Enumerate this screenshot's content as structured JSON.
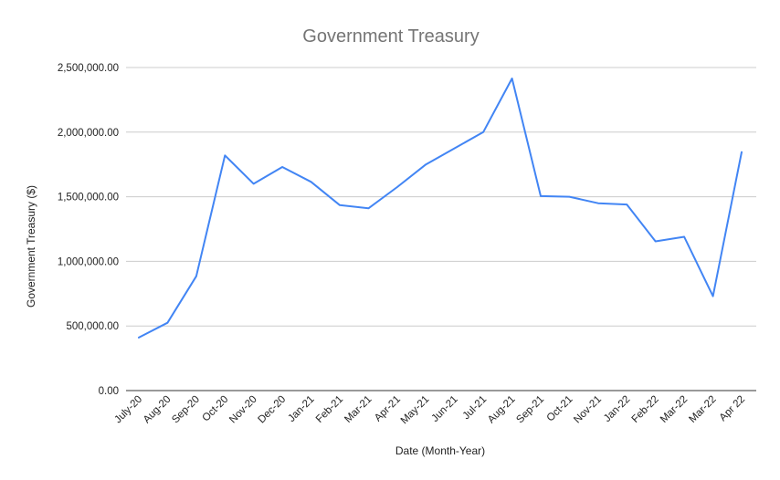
{
  "chart_data": {
    "type": "line",
    "title": "Government Treasury",
    "xlabel": "Date (Month-Year)",
    "ylabel": "Government Treasury ($)",
    "ylim": [
      0,
      2500000
    ],
    "yticks": [
      "0.00",
      "500,000.00",
      "1,000,000.00",
      "1,500,000.00",
      "2,000,000.00",
      "2,500,000.00"
    ],
    "ytick_values": [
      0,
      500000,
      1000000,
      1500000,
      2000000,
      2500000
    ],
    "grid": true,
    "legend": "none",
    "categories": [
      "July-20",
      "Aug-20",
      "Sep-20",
      "Oct-20",
      "Nov-20",
      "Dec-20",
      "Jan-21",
      "Feb-21",
      "Mar-21",
      "Apr-21",
      "May-21",
      "Jun-21",
      "Jul-21",
      "Aug-21",
      "Sep-21",
      "Oct-21",
      "Nov-21",
      "Jan-22",
      "Feb-22",
      "Mar-22",
      "Mar-22",
      "Apr 22"
    ],
    "series": [
      {
        "color": "#4285f4",
        "values": [
          410000,
          525000,
          885000,
          1820000,
          1600000,
          1730000,
          1615000,
          1435000,
          1410000,
          1575000,
          1750000,
          1875000,
          2000000,
          2415000,
          1505000,
          1500000,
          1450000,
          1440000,
          1155000,
          1190000,
          730000,
          1845000
        ]
      }
    ]
  }
}
